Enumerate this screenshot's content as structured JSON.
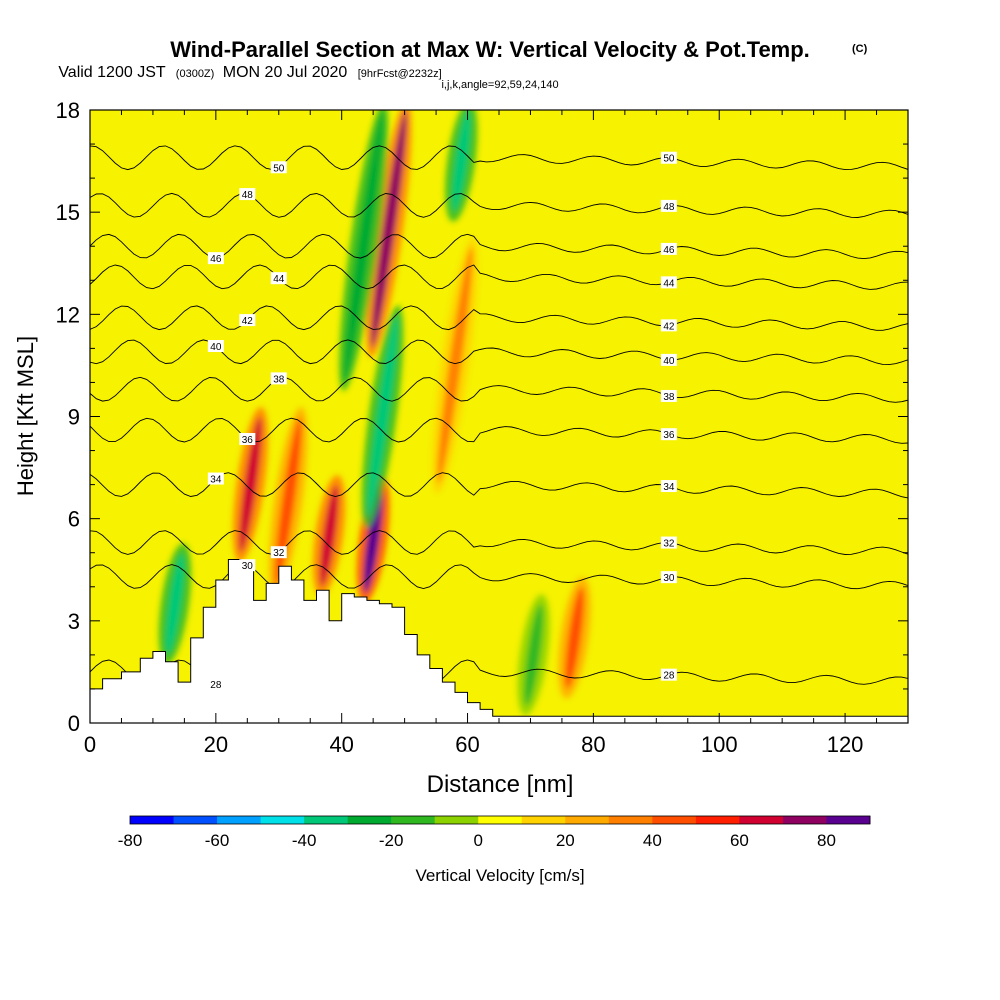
{
  "chart_data": {
    "type": "heatmap",
    "title": "Wind-Parallel Section at Max W: Vertical Velocity & Pot.Temp.",
    "title_mark": "(C)",
    "subtitle": {
      "valid": "Valid 1200 JST",
      "utc": "(0300Z)",
      "date": "MON 20 Jul 2020",
      "fcst": "[9hrFcst@2232z]",
      "indices": "i,j,k,angle=92,59,24,140"
    },
    "xlabel": "Distance [nm]",
    "ylabel": "Height [Kft MSL]",
    "xlim": [
      0,
      130
    ],
    "ylim": [
      0,
      18
    ],
    "x_ticks": [
      0,
      20,
      40,
      60,
      80,
      100,
      120
    ],
    "y_ticks": [
      0,
      3,
      6,
      9,
      12,
      15,
      18
    ],
    "colorbar": {
      "label": "Vertical Velocity [cm/s]",
      "min": -80,
      "max": 90,
      "step": 10,
      "tick_values": [
        -80,
        -60,
        -40,
        -20,
        0,
        20,
        40,
        60,
        80
      ],
      "colors": [
        "#0000ff",
        "#0050ff",
        "#00a0ff",
        "#00e0e8",
        "#00c878",
        "#00aa30",
        "#30b820",
        "#8cd200",
        "#ffff00",
        "#ffd200",
        "#ffaa00",
        "#ff8000",
        "#ff4e00",
        "#ff1e00",
        "#d00030",
        "#900060",
        "#5a0090"
      ]
    },
    "terrain_profile": {
      "x": [
        0,
        2,
        5,
        8,
        10,
        12,
        14,
        16,
        18,
        20,
        22,
        24,
        26,
        28,
        30,
        32,
        34,
        36,
        38,
        40,
        42,
        44,
        46,
        48,
        50,
        52,
        54,
        56,
        58,
        60,
        62,
        64,
        130
      ],
      "height": [
        1.0,
        1.3,
        1.5,
        1.9,
        2.1,
        1.8,
        1.2,
        2.5,
        3.4,
        4.2,
        4.8,
        4.5,
        3.6,
        4.1,
        4.6,
        4.2,
        3.6,
        3.9,
        3.0,
        3.8,
        3.7,
        3.6,
        3.5,
        3.4,
        2.6,
        2.0,
        1.6,
        1.2,
        0.9,
        0.6,
        0.4,
        0.2,
        0.1
      ]
    },
    "vertical_velocity_features": [
      {
        "x": 25.5,
        "z": [
          5,
          9
        ],
        "w": 60
      },
      {
        "x": 38.0,
        "z": [
          4,
          7
        ],
        "w": 60
      },
      {
        "x": 45.0,
        "z": [
          3.8,
          7
        ],
        "w": 90
      },
      {
        "x": 47.5,
        "z": [
          11,
          18
        ],
        "w": 70
      },
      {
        "x": 46.5,
        "z": [
          6,
          12
        ],
        "w": -40
      },
      {
        "x": 43.5,
        "z": [
          10,
          18
        ],
        "w": -30
      },
      {
        "x": 59.0,
        "z": [
          15,
          18
        ],
        "w": -40
      },
      {
        "x": 13.5,
        "z": [
          2,
          5
        ],
        "w": -40
      },
      {
        "x": 31.5,
        "z": [
          4,
          9
        ],
        "w": 40
      },
      {
        "x": 77.0,
        "z": [
          1,
          4
        ],
        "w": 40
      },
      {
        "x": 70.5,
        "z": [
          0.5,
          3.5
        ],
        "w": -20
      },
      {
        "x": 58.0,
        "z": [
          7,
          14
        ],
        "w": 30
      }
    ],
    "theta_contours": [
      {
        "label": "28",
        "z": 1.5
      },
      {
        "label": "30",
        "z": 4.3
      },
      {
        "label": "32",
        "z": 5.3
      },
      {
        "label": "34",
        "z": 7.0
      },
      {
        "label": "36",
        "z": 8.6
      },
      {
        "label": "38",
        "z": 9.8
      },
      {
        "label": "40",
        "z": 10.9
      },
      {
        "label": "42",
        "z": 11.9
      },
      {
        "label": "44",
        "z": 13.1
      },
      {
        "label": "46",
        "z": 14.0
      },
      {
        "label": "48",
        "z": 15.2
      },
      {
        "label": "50",
        "z": 16.6
      }
    ]
  }
}
